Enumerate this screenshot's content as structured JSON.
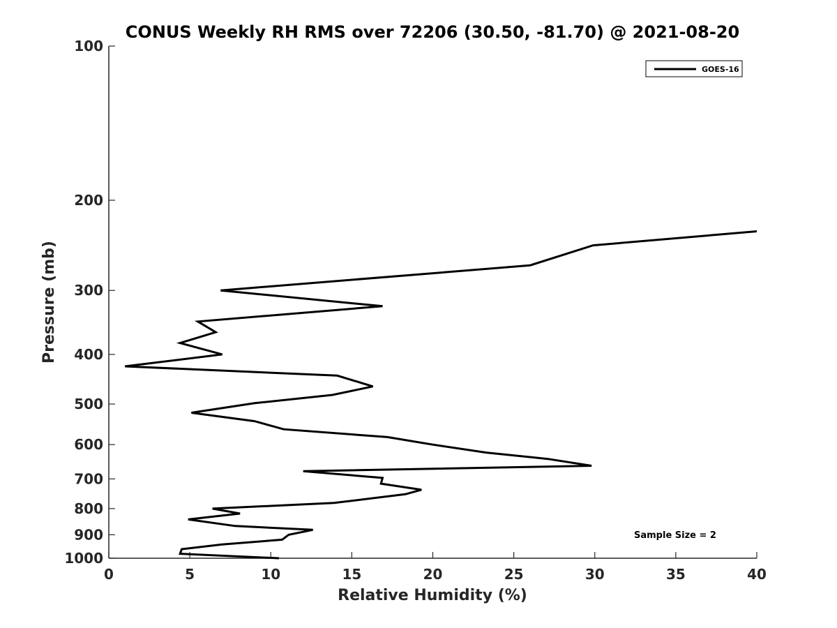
{
  "chart_data": {
    "type": "line",
    "title": "CONUS Weekly RH RMS over 72206 (30.50, -81.70) @ 2021-08-20",
    "xlabel": "Relative Humidity (%)",
    "ylabel": "Pressure (mb)",
    "xlim": [
      0,
      40
    ],
    "ylim": [
      100,
      1000
    ],
    "y_scale": "log",
    "y_reversed": true,
    "grid": false,
    "legend_position": "top-right",
    "x_ticks": [
      0,
      5,
      10,
      15,
      20,
      25,
      30,
      35,
      40
    ],
    "y_ticks": [
      100,
      200,
      300,
      400,
      500,
      600,
      700,
      800,
      900,
      1000
    ],
    "series": [
      {
        "name": "GOES-16",
        "color": "#000000",
        "points": [
          [
            40.0,
            230
          ],
          [
            29.9,
            245
          ],
          [
            26.0,
            268
          ],
          [
            6.9,
            300
          ],
          [
            16.9,
            322
          ],
          [
            5.5,
            345
          ],
          [
            6.6,
            362
          ],
          [
            4.4,
            380
          ],
          [
            7.0,
            400
          ],
          [
            1.0,
            422
          ],
          [
            14.1,
            440
          ],
          [
            16.3,
            462
          ],
          [
            13.8,
            480
          ],
          [
            9.0,
            498
          ],
          [
            5.1,
            520
          ],
          [
            9.0,
            540
          ],
          [
            10.8,
            560
          ],
          [
            17.2,
            580
          ],
          [
            20.0,
            600
          ],
          [
            23.3,
            622
          ],
          [
            27.1,
            640
          ],
          [
            29.8,
            660
          ],
          [
            12.0,
            676
          ],
          [
            16.9,
            697
          ],
          [
            16.8,
            715
          ],
          [
            19.3,
            735
          ],
          [
            18.3,
            750
          ],
          [
            13.9,
            780
          ],
          [
            6.4,
            800
          ],
          [
            8.1,
            818
          ],
          [
            4.9,
            840
          ],
          [
            7.8,
            865
          ],
          [
            12.6,
            880
          ],
          [
            11.1,
            900
          ],
          [
            10.7,
            920
          ],
          [
            7.0,
            940
          ],
          [
            4.5,
            960
          ],
          [
            4.4,
            980
          ],
          [
            10.5,
            1000
          ]
        ]
      }
    ],
    "annotation": "Sample Size = 2"
  }
}
